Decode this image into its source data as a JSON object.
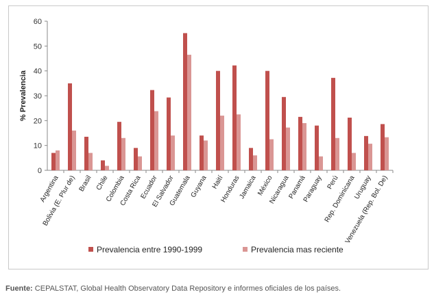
{
  "chart_data": {
    "type": "bar",
    "title": "",
    "xlabel": "",
    "ylabel": "% Prevalencia",
    "ylim": [
      0,
      60
    ],
    "yticks": [
      0,
      10,
      20,
      30,
      40,
      50,
      60
    ],
    "grid": false,
    "legend_position": "bottom",
    "categories": [
      "Argentina",
      "Bolivia (E. Plur de)",
      "Brasil",
      "Chile",
      "Colombia",
      "Costa Rica",
      "Ecuador",
      "El Salvador",
      "Guatemala",
      "Guyana",
      "Haití",
      "Honduras",
      "Jamaica",
      "México",
      "Nicaragua",
      "Panamá",
      "Paraguay",
      "Perú",
      "Rep. Dominicana",
      "Uruguay",
      "Venezuela (Rep. Bol. De)"
    ],
    "series": [
      {
        "name": "Prevalencia entre 1990-1999",
        "color": "#c0504d",
        "values": [
          7,
          35,
          13.5,
          4,
          19.5,
          9,
          32.3,
          29.3,
          55.2,
          14,
          40,
          42.2,
          9,
          40,
          29.5,
          21.5,
          18,
          37.2,
          21.2,
          13.8,
          18.6
        ]
      },
      {
        "name": "Prevalencia mas reciente",
        "color": "#da9694",
        "values": [
          8,
          16,
          7,
          1.8,
          13,
          5.6,
          23.8,
          14,
          46.5,
          12,
          22,
          22.5,
          6,
          12.5,
          17.2,
          19,
          5.6,
          13,
          7,
          10.7,
          13.3
        ]
      }
    ]
  },
  "footer": {
    "source_label": "Fuente:",
    "source_text": " CEPALSTAT, Global Health Observatory Data Repository e informes oficiales de los países."
  }
}
